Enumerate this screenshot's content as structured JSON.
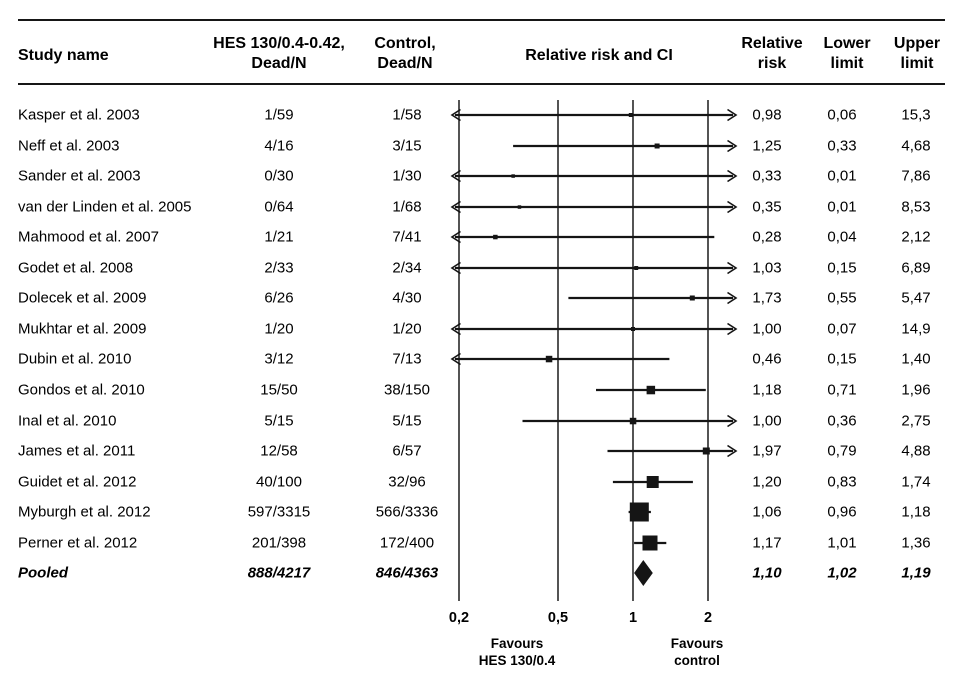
{
  "table": {
    "headers": {
      "study": "Study name",
      "hes": "HES 130/0.4-0.42,\nDead/N",
      "control": "Control,\nDead/N",
      "plot": "Relative risk and CI",
      "rr": "Relative\nrisk",
      "lower": "Lower\nlimit",
      "upper": "Upper\nlimit"
    }
  },
  "chart_data": {
    "type": "forest",
    "title": "Relative risk and CI",
    "x_axis": {
      "scale": "log",
      "tick_values": [
        0.2,
        0.5,
        1,
        2
      ],
      "tick_labels": [
        "0,2",
        "0,5",
        "1",
        "2"
      ],
      "clip_range": [
        0.19,
        2.53
      ]
    },
    "footers": {
      "left": "Favours\nHES 130/0.4",
      "right": "Favours\ncontrol"
    },
    "decimal_separator": ",",
    "studies": [
      {
        "name": "Kasper et al. 2003",
        "hes_dead_n": "1/59",
        "control_dead_n": "1/58",
        "rr": "0,98",
        "lower": "0,06",
        "upper": "15,3",
        "marker_size": 4
      },
      {
        "name": "Neff et al. 2003",
        "hes_dead_n": "4/16",
        "control_dead_n": "3/15",
        "rr": "1,25",
        "lower": "0,33",
        "upper": "4,68",
        "marker_size": 5
      },
      {
        "name": "Sander et al. 2003",
        "hes_dead_n": "0/30",
        "control_dead_n": "1/30",
        "rr": "0,33",
        "lower": "0,01",
        "upper": "7,86",
        "marker_size": 3.5
      },
      {
        "name": "van der Linden et al. 2005",
        "hes_dead_n": "0/64",
        "control_dead_n": "1/68",
        "rr": "0,35",
        "lower": "0,01",
        "upper": "8,53",
        "marker_size": 3.5
      },
      {
        "name": "Mahmood et al. 2007",
        "hes_dead_n": "1/21",
        "control_dead_n": "7/41",
        "rr": "0,28",
        "lower": "0,04",
        "upper": "2,12",
        "marker_size": 4.5
      },
      {
        "name": "Godet et al. 2008",
        "hes_dead_n": "2/33",
        "control_dead_n": "2/34",
        "rr": "1,03",
        "lower": "0,15",
        "upper": "6,89",
        "marker_size": 4
      },
      {
        "name": "Dolecek et al. 2009",
        "hes_dead_n": "6/26",
        "control_dead_n": "4/30",
        "rr": "1,73",
        "lower": "0,55",
        "upper": "5,47",
        "marker_size": 5
      },
      {
        "name": "Mukhtar et al. 2009",
        "hes_dead_n": "1/20",
        "control_dead_n": "1/20",
        "rr": "1,00",
        "lower": "0,07",
        "upper": "14,9",
        "marker_size": 4
      },
      {
        "name": "Dubin et al. 2010",
        "hes_dead_n": "3/12",
        "control_dead_n": "7/13",
        "rr": "0,46",
        "lower": "0,15",
        "upper": "1,40",
        "marker_size": 6.5
      },
      {
        "name": "Gondos et al. 2010",
        "hes_dead_n": "15/50",
        "control_dead_n": "38/150",
        "rr": "1,18",
        "lower": "0,71",
        "upper": "1,96",
        "marker_size": 8.5
      },
      {
        "name": "Inal et al. 2010",
        "hes_dead_n": "5/15",
        "control_dead_n": "5/15",
        "rr": "1,00",
        "lower": "0,36",
        "upper": "2,75",
        "marker_size": 6.5
      },
      {
        "name": "James et al. 2011",
        "hes_dead_n": "12/58",
        "control_dead_n": "6/57",
        "rr": "1,97",
        "lower": "0,79",
        "upper": "4,88",
        "marker_size": 7
      },
      {
        "name": "Guidet et al. 2012",
        "hes_dead_n": "40/100",
        "control_dead_n": "32/96",
        "rr": "1,20",
        "lower": "0,83",
        "upper": "1,74",
        "marker_size": 12
      },
      {
        "name": "Myburgh et al. 2012",
        "hes_dead_n": "597/3315",
        "control_dead_n": "566/3336",
        "rr": "1,06",
        "lower": "0,96",
        "upper": "1,18",
        "marker_size": 19
      },
      {
        "name": "Perner et al. 2012",
        "hes_dead_n": "201/398",
        "control_dead_n": "172/400",
        "rr": "1,17",
        "lower": "1,01",
        "upper": "1,36",
        "marker_size": 15
      },
      {
        "name": "Pooled",
        "hes_dead_n": "888/4217",
        "control_dead_n": "846/4363",
        "rr": "1,10",
        "lower": "1,02",
        "upper": "1,19",
        "marker_size": 0,
        "pooled": true
      }
    ]
  }
}
